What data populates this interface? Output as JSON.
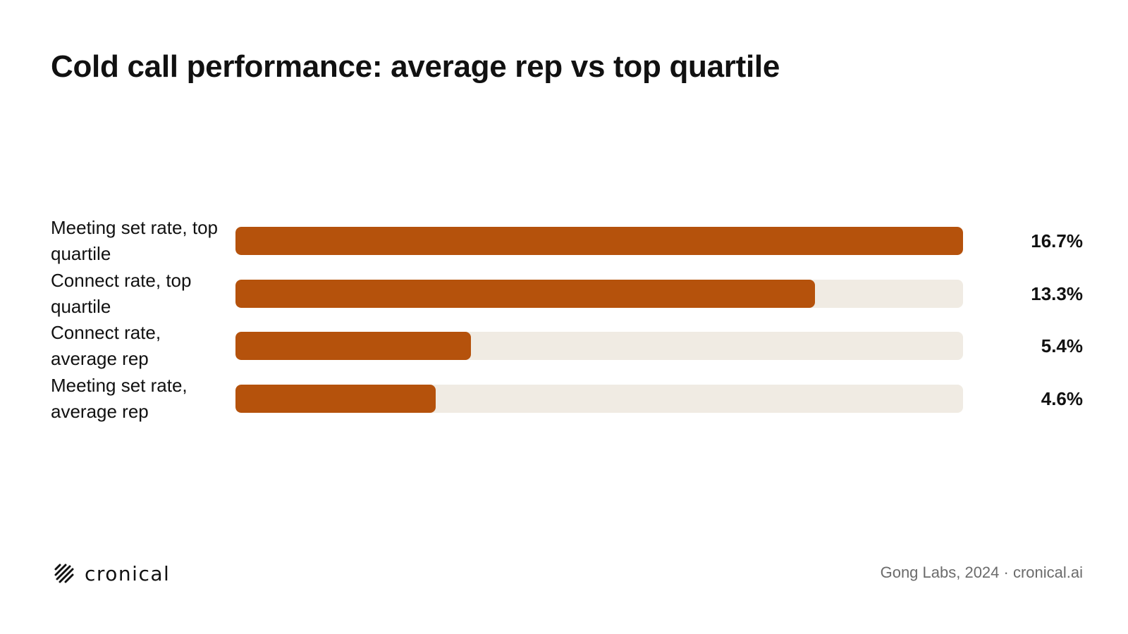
{
  "title": "Cold call performance: average rep vs top quartile",
  "chart_data": {
    "type": "bar",
    "orientation": "horizontal",
    "categories": [
      "Meeting set rate, top quartile",
      "Connect rate, top quartile",
      "Connect rate, average rep",
      "Meeting set rate, average rep"
    ],
    "values": [
      16.7,
      13.3,
      5.4,
      4.6
    ],
    "value_labels": [
      "16.7%",
      "13.3%",
      "5.4%",
      "4.6%"
    ],
    "unit": "%",
    "xlim": [
      0,
      16.7
    ],
    "grid": false,
    "legend": "none",
    "colors": {
      "bar": "#b5520c",
      "track": "#f0ebe3"
    }
  },
  "footer": {
    "logo_text": "cronical",
    "logo_icon": "hatch-logo-icon",
    "source": "Gong Labs, 2024 · cronical.ai"
  }
}
